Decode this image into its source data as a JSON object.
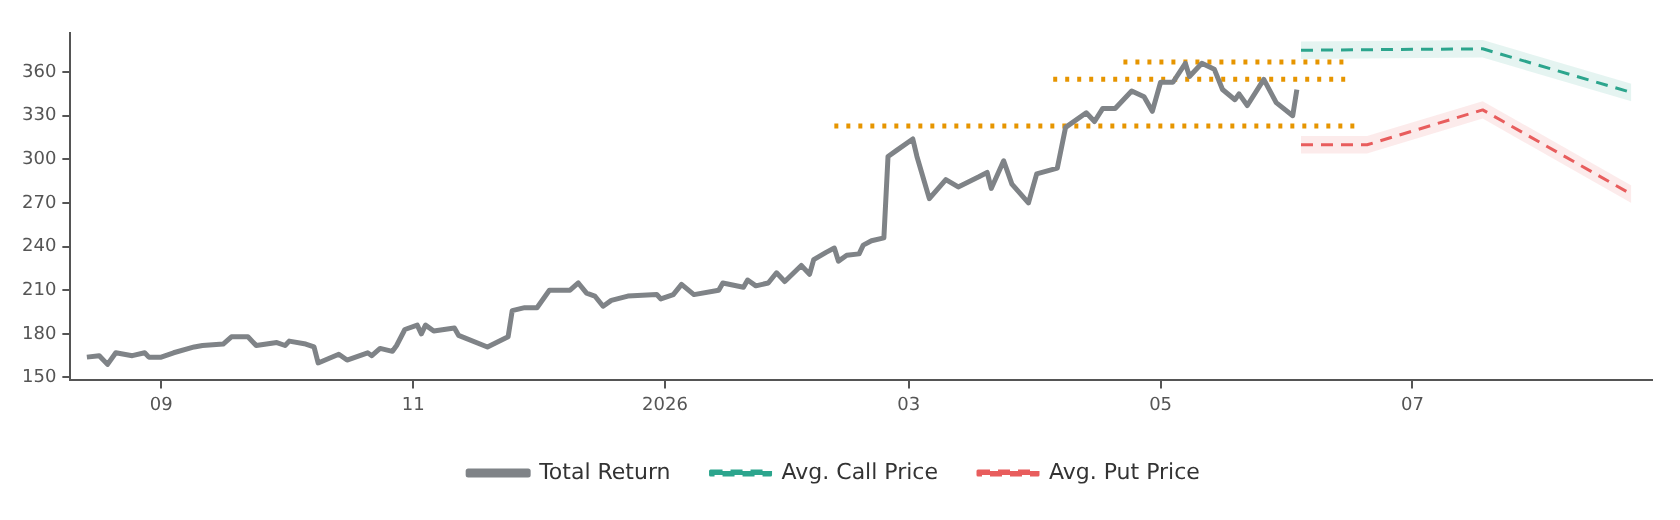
{
  "chart_data": {
    "type": "line",
    "legend": "bottom",
    "grid": false,
    "marker": "none",
    "xlim": [
      "2025-08-10",
      "2026-08-28"
    ],
    "xticks": [
      {
        "value": "2025-09-01",
        "label": "09"
      },
      {
        "value": "2025-11-01",
        "label": "11"
      },
      {
        "value": "2026-01-01",
        "label": "2026"
      },
      {
        "value": "2026-03-01",
        "label": "03"
      },
      {
        "value": "2026-05-01",
        "label": "05"
      },
      {
        "value": "2026-07-01",
        "label": "07"
      }
    ],
    "ylim": [
      148,
      387
    ],
    "yticks": [
      150,
      180,
      210,
      240,
      270,
      300,
      330,
      360
    ],
    "series": [
      {
        "name": "Total Return",
        "color": "#7f8387",
        "line_style": "solid",
        "x": [
          "2025-08-14",
          "2025-08-17",
          "2025-08-19",
          "2025-08-21",
          "2025-08-25",
          "2025-08-28",
          "2025-08-29",
          "2025-09-01",
          "2025-09-04",
          "2025-09-09",
          "2025-09-11",
          "2025-09-16",
          "2025-09-18",
          "2025-09-22",
          "2025-09-24",
          "2025-09-29",
          "2025-10-01",
          "2025-10-02",
          "2025-10-06",
          "2025-10-08",
          "2025-10-09",
          "2025-10-14",
          "2025-10-16",
          "2025-10-21",
          "2025-10-22",
          "2025-10-24",
          "2025-10-27",
          "2025-10-28",
          "2025-10-30",
          "2025-11-02",
          "2025-11-03",
          "2025-11-04",
          "2025-11-06",
          "2025-11-11",
          "2025-11-12",
          "2025-11-19",
          "2025-11-24",
          "2025-11-25",
          "2025-11-28",
          "2025-12-01",
          "2025-12-04",
          "2025-12-09",
          "2025-12-11",
          "2025-12-13",
          "2025-12-15",
          "2025-12-17",
          "2025-12-19",
          "2025-12-23",
          "2025-12-30",
          "2025-12-31",
          "2026-01-03",
          "2026-01-05",
          "2026-01-08",
          "2026-01-14",
          "2026-01-15",
          "2026-01-20",
          "2026-01-21",
          "2026-01-23",
          "2026-01-26",
          "2026-01-28",
          "2026-01-30",
          "2026-02-03",
          "2026-02-05",
          "2026-02-06",
          "2026-02-09",
          "2026-02-11",
          "2026-02-12",
          "2026-02-14",
          "2026-02-17",
          "2026-02-18",
          "2026-02-20",
          "2026-02-23",
          "2026-02-24",
          "2026-02-26",
          "2026-03-02",
          "2026-03-03",
          "2026-03-06",
          "2026-03-10",
          "2026-03-13",
          "2026-03-18",
          "2026-03-20",
          "2026-03-21",
          "2026-03-24",
          "2026-03-26",
          "2026-03-30",
          "2026-04-01",
          "2026-04-06",
          "2026-04-08",
          "2026-04-13",
          "2026-04-15",
          "2026-04-17",
          "2026-04-20",
          "2026-04-24",
          "2026-04-27",
          "2026-04-29",
          "2026-05-01",
          "2026-05-04",
          "2026-05-07",
          "2026-05-08",
          "2026-05-11",
          "2026-05-14",
          "2026-05-16",
          "2026-05-19",
          "2026-05-20",
          "2026-05-22",
          "2026-05-26",
          "2026-05-29",
          "2026-06-02",
          "2026-06-03"
        ],
        "values": [
          164,
          165,
          159,
          167,
          165,
          167,
          164,
          164,
          167,
          171,
          172,
          173,
          178,
          178,
          172,
          174,
          172,
          175,
          173,
          171,
          160,
          166,
          162,
          167,
          165,
          170,
          168,
          172,
          183,
          186,
          180,
          186,
          182,
          184,
          179,
          171,
          178,
          196,
          198,
          198,
          210,
          210,
          215,
          208,
          206,
          199,
          203,
          206,
          207,
          204,
          207,
          214,
          207,
          210,
          215,
          212,
          217,
          213,
          215,
          222,
          216,
          227,
          221,
          231,
          236,
          239,
          230,
          234,
          235,
          241,
          244,
          246,
          302,
          306,
          314,
          302,
          273,
          286,
          281,
          288,
          291,
          280,
          299,
          283,
          270,
          290,
          294,
          322,
          332,
          326,
          335,
          335,
          347,
          343,
          333,
          353,
          353,
          366,
          357,
          366,
          362,
          348,
          341,
          345,
          337,
          355,
          339,
          330,
          348
        ]
      },
      {
        "name": "Avg. Call Price",
        "color": "#2ca58d",
        "line_style": "dashed",
        "x": [
          "2026-06-04",
          "2026-07-18",
          "2026-08-23"
        ],
        "values": [
          375,
          376,
          346
        ],
        "lower": [
          369,
          370,
          340
        ],
        "upper": [
          381,
          382,
          352
        ]
      },
      {
        "name": "Avg. Put Price",
        "color": "#e85d5d",
        "line_style": "dashed",
        "x": [
          "2026-06-04",
          "2026-06-20",
          "2026-07-18",
          "2026-08-23"
        ],
        "values": [
          310,
          310,
          334,
          276
        ],
        "lower": [
          304,
          304,
          328,
          270
        ],
        "upper": [
          316,
          316,
          340,
          282
        ]
      },
      {
        "color": "#e69500",
        "line_style": "dotted",
        "x": [
          "2026-02-11",
          "2026-06-17"
        ],
        "values": [
          323,
          323
        ]
      },
      {
        "color": "#e69500",
        "line_style": "dotted",
        "x": [
          "2026-04-05",
          "2026-06-16"
        ],
        "values": [
          355,
          355
        ]
      },
      {
        "color": "#e69500",
        "line_style": "dotted",
        "x": [
          "2026-04-22",
          "2026-06-15"
        ],
        "values": [
          367,
          367
        ]
      }
    ]
  }
}
